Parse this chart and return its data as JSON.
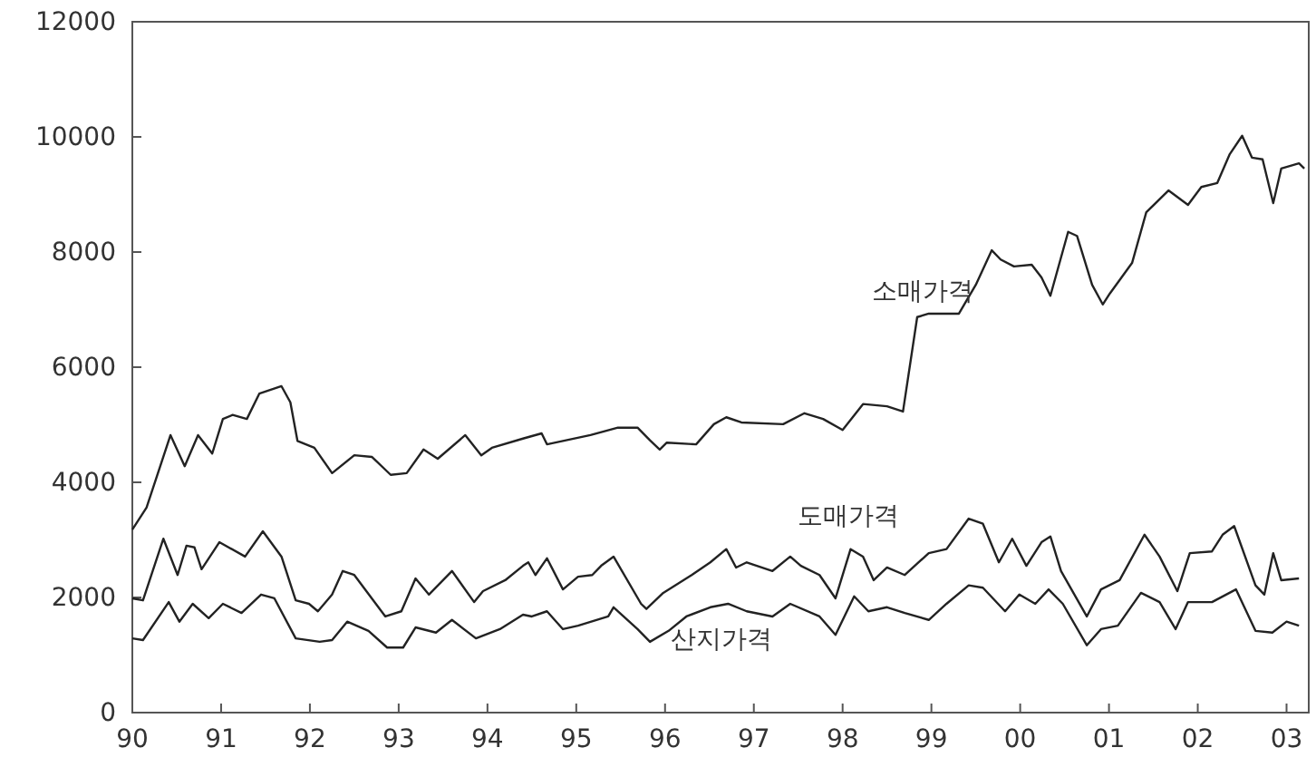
{
  "chart_data": {
    "type": "line",
    "xlim": [
      1990,
      2003.25
    ],
    "ylim": [
      0,
      12000
    ],
    "xticks": [
      {
        "value": 1990,
        "label": "90"
      },
      {
        "value": 1991,
        "label": "91"
      },
      {
        "value": 1992,
        "label": "92"
      },
      {
        "value": 1993,
        "label": "93"
      },
      {
        "value": 1994,
        "label": "94"
      },
      {
        "value": 1995,
        "label": "95"
      },
      {
        "value": 1996,
        "label": "96"
      },
      {
        "value": 1997,
        "label": "97"
      },
      {
        "value": 1998,
        "label": "98"
      },
      {
        "value": 1999,
        "label": "99"
      },
      {
        "value": 2000,
        "label": "00"
      },
      {
        "value": 2001,
        "label": "01"
      },
      {
        "value": 2002,
        "label": "02"
      },
      {
        "value": 2003,
        "label": "03"
      }
    ],
    "yticks": [
      0,
      2000,
      4000,
      6000,
      8000,
      10000,
      12000
    ],
    "grid": false,
    "legend": false,
    "marker": "none",
    "line_style": "solid",
    "series": [
      {
        "name": "소매가격",
        "color": "#222222",
        "x": [
          1990.0,
          1990.16,
          1990.43,
          1990.59,
          1990.74,
          1990.9,
          1991.02,
          1991.13,
          1991.29,
          1991.43,
          1991.68,
          1991.78,
          1991.86,
          1992.05,
          1992.25,
          1992.5,
          1992.7,
          1992.91,
          1993.09,
          1993.28,
          1993.44,
          1993.75,
          1993.93,
          1994.05,
          1994.4,
          1994.61,
          1994.67,
          1995.16,
          1995.47,
          1995.69,
          1995.83,
          1995.94,
          1996.02,
          1996.35,
          1996.55,
          1996.69,
          1996.86,
          1997.33,
          1997.57,
          1997.78,
          1998.0,
          1998.23,
          1998.5,
          1998.68,
          1998.84,
          1998.97,
          1999.31,
          1999.5,
          1999.68,
          1999.78,
          1999.93,
          2000.13,
          2000.24,
          2000.34,
          2000.54,
          2000.64,
          2000.81,
          2000.93,
          2001.01,
          2001.26,
          2001.42,
          2001.67,
          2001.89,
          2002.04,
          2002.22,
          2002.36,
          2002.5,
          2002.61,
          2002.73,
          2002.85,
          2002.94,
          2003.14,
          2003.2
        ],
        "values": [
          3180,
          3560,
          4820,
          4280,
          4820,
          4500,
          5100,
          5170,
          5100,
          5540,
          5670,
          5390,
          4720,
          4600,
          4160,
          4470,
          4440,
          4130,
          4160,
          4570,
          4410,
          4820,
          4470,
          4600,
          4760,
          4850,
          4660,
          4820,
          4950,
          4950,
          4730,
          4570,
          4690,
          4660,
          5010,
          5130,
          5040,
          5010,
          5200,
          5100,
          4910,
          5360,
          5320,
          5230,
          6870,
          6930,
          6930,
          7430,
          8030,
          7870,
          7750,
          7780,
          7560,
          7240,
          8350,
          8280,
          7430,
          7090,
          7280,
          7810,
          8690,
          9070,
          8820,
          9130,
          9200,
          9700,
          10020,
          9640,
          9610,
          8850,
          9450,
          9540,
          9450
        ]
      },
      {
        "name": "도매가격",
        "color": "#222222",
        "x": [
          1990.0,
          1990.12,
          1990.35,
          1990.51,
          1990.61,
          1990.7,
          1990.78,
          1990.98,
          1991.27,
          1991.47,
          1991.68,
          1991.84,
          1991.99,
          1992.09,
          1992.25,
          1992.37,
          1992.5,
          1992.85,
          1993.03,
          1993.19,
          1993.34,
          1993.6,
          1993.85,
          1993.95,
          1994.2,
          1994.4,
          1994.46,
          1994.54,
          1994.67,
          1994.85,
          1995.02,
          1995.18,
          1995.28,
          1995.42,
          1995.73,
          1995.79,
          1995.98,
          1996.3,
          1996.51,
          1996.69,
          1996.8,
          1996.92,
          1997.21,
          1997.41,
          1997.53,
          1997.74,
          1997.92,
          1998.09,
          1998.23,
          1998.35,
          1998.5,
          1998.7,
          1998.97,
          1999.17,
          1999.42,
          1999.58,
          1999.76,
          1999.91,
          2000.07,
          2000.24,
          2000.34,
          2000.46,
          2000.75,
          2000.91,
          2001.12,
          2001.4,
          2001.57,
          2001.77,
          2001.91,
          2002.16,
          2002.28,
          2002.41,
          2002.65,
          2002.75,
          2002.85,
          2002.94,
          2003.14
        ],
        "values": [
          1985,
          1950,
          3020,
          2390,
          2900,
          2870,
          2490,
          2960,
          2710,
          3150,
          2710,
          1950,
          1890,
          1760,
          2050,
          2460,
          2390,
          1670,
          1760,
          2330,
          2050,
          2460,
          1920,
          2110,
          2300,
          2550,
          2610,
          2390,
          2680,
          2140,
          2360,
          2390,
          2550,
          2710,
          1890,
          1800,
          2080,
          2390,
          2610,
          2840,
          2520,
          2610,
          2460,
          2710,
          2550,
          2390,
          1985,
          2840,
          2710,
          2300,
          2520,
          2390,
          2770,
          2840,
          3370,
          3280,
          2610,
          3020,
          2550,
          2960,
          3060,
          2460,
          1670,
          2140,
          2300,
          3090,
          2710,
          2110,
          2770,
          2800,
          3090,
          3240,
          2210,
          2050,
          2770,
          2300,
          2330
        ]
      },
      {
        "name": "산지가격",
        "color": "#222222",
        "x": [
          1990.0,
          1990.12,
          1990.41,
          1990.53,
          1990.68,
          1990.86,
          1991.02,
          1991.23,
          1991.45,
          1991.6,
          1991.84,
          1992.11,
          1992.25,
          1992.42,
          1992.66,
          1992.87,
          1993.05,
          1993.19,
          1993.42,
          1993.6,
          1993.87,
          1994.14,
          1994.4,
          1994.5,
          1994.67,
          1994.85,
          1995.02,
          1995.36,
          1995.42,
          1995.69,
          1995.83,
          1996.04,
          1996.24,
          1996.51,
          1996.71,
          1996.92,
          1997.21,
          1997.41,
          1997.74,
          1997.92,
          1998.13,
          1998.29,
          1998.5,
          1998.7,
          1998.97,
          1999.17,
          1999.42,
          1999.58,
          1999.83,
          1999.99,
          2000.17,
          2000.32,
          2000.48,
          2000.75,
          2000.91,
          2001.1,
          2001.36,
          2001.57,
          2001.75,
          2001.89,
          2002.16,
          2002.43,
          2002.65,
          2002.84,
          2003.0,
          2003.14
        ],
        "values": [
          1290,
          1260,
          1920,
          1580,
          1890,
          1640,
          1890,
          1730,
          2050,
          1985,
          1290,
          1230,
          1260,
          1580,
          1420,
          1130,
          1130,
          1480,
          1390,
          1610,
          1290,
          1450,
          1700,
          1670,
          1760,
          1450,
          1510,
          1670,
          1830,
          1450,
          1230,
          1420,
          1670,
          1830,
          1890,
          1760,
          1670,
          1890,
          1670,
          1350,
          2020,
          1760,
          1830,
          1730,
          1610,
          1890,
          2210,
          2170,
          1760,
          2050,
          1890,
          2140,
          1890,
          1170,
          1450,
          1510,
          2080,
          1920,
          1450,
          1920,
          1920,
          2140,
          1420,
          1390,
          1580,
          1510
        ]
      }
    ]
  }
}
